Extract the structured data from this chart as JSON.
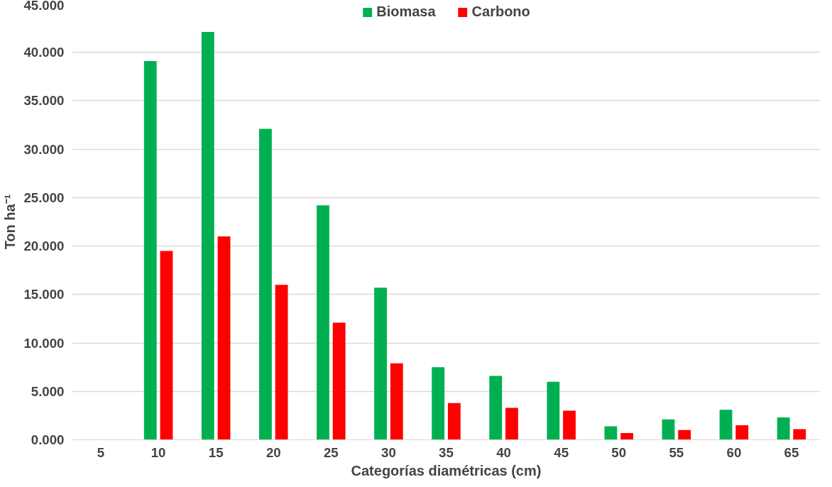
{
  "chart_data": {
    "type": "bar",
    "xlabel": "Categorías diamétricas (cm)",
    "ylabel": "Ton ha⁻¹",
    "categories": [
      "5",
      "10",
      "15",
      "20",
      "25",
      "30",
      "35",
      "40",
      "45",
      "50",
      "55",
      "60",
      "65"
    ],
    "series": [
      {
        "name": "Biomasa",
        "color": "#00b050",
        "values": [
          null,
          39.1,
          42.1,
          32.1,
          24.2,
          15.7,
          7.5,
          6.6,
          6.0,
          1.4,
          2.1,
          3.1,
          2.3
        ]
      },
      {
        "name": "Carbono",
        "color": "#ff0000",
        "values": [
          null,
          19.5,
          21.0,
          16.0,
          12.1,
          7.9,
          3.8,
          3.3,
          3.0,
          0.7,
          1.0,
          1.5,
          1.1
        ]
      }
    ],
    "ylim": [
      0,
      45
    ],
    "yticks": [
      {
        "value": 0,
        "label": "0.000"
      },
      {
        "value": 5,
        "label": "5.000"
      },
      {
        "value": 10,
        "label": "10.000"
      },
      {
        "value": 15,
        "label": "15.000"
      },
      {
        "value": 20,
        "label": "20.000"
      },
      {
        "value": 25,
        "label": "25.000"
      },
      {
        "value": 30,
        "label": "30.000"
      },
      {
        "value": 35,
        "label": "35.000"
      },
      {
        "value": 40,
        "label": "40.000"
      },
      {
        "value": 45,
        "label": "45.000"
      }
    ],
    "grid": "y",
    "legend": "top"
  }
}
